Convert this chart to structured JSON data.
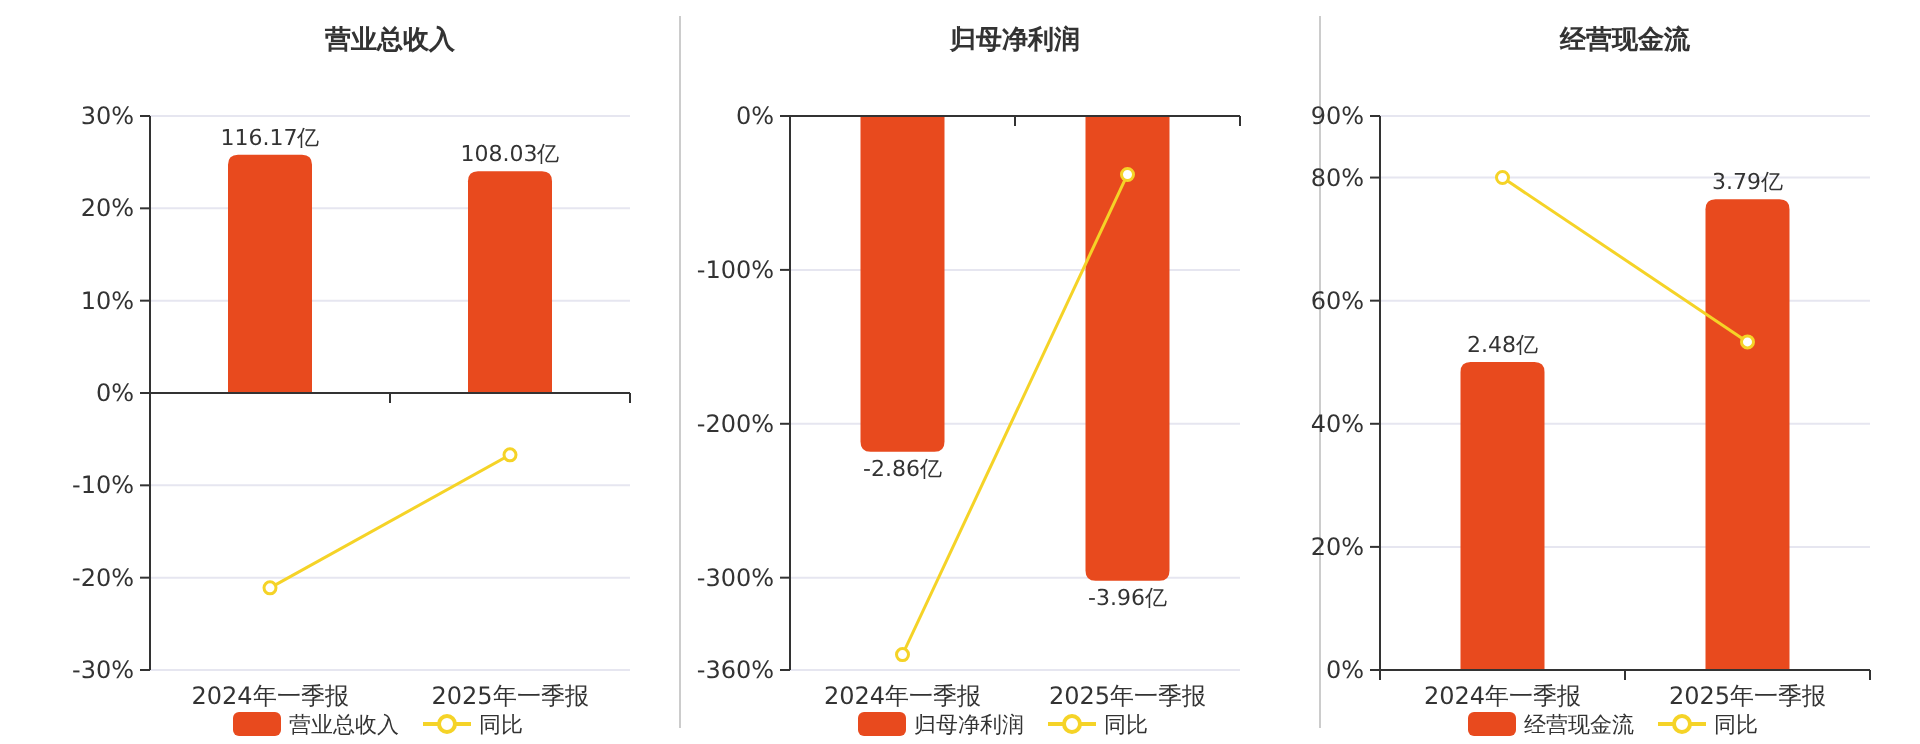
{
  "chart_data": [
    {
      "type": "bar",
      "title": "营业总收入",
      "categories": [
        "2024年一季报",
        "2025年一季报"
      ],
      "series": [
        {
          "name": "营业总收入",
          "axis": "y2",
          "color": "#e84a1e",
          "values": [
            116.17,
            108.03
          ],
          "value_labels": [
            "116.17亿",
            "108.03亿"
          ]
        },
        {
          "name": "同比",
          "type": "line",
          "color": "#f5d327",
          "marker": "circle",
          "values": [
            -21.1,
            -6.7
          ]
        }
      ],
      "ylim": [
        -30,
        30
      ],
      "yticks": [
        {
          "value": 30,
          "label": "30%"
        },
        {
          "value": 20,
          "label": "20%"
        },
        {
          "value": 10,
          "label": "10%"
        },
        {
          "value": 0,
          "label": "0%"
        },
        {
          "value": -10,
          "label": "-10%"
        },
        {
          "value": -20,
          "label": "-20%"
        },
        {
          "value": -30,
          "label": "-30%"
        }
      ],
      "y2lim": [
        -135,
        135
      ],
      "grid": "y",
      "legend": "bottom"
    },
    {
      "type": "bar",
      "title": "归母净利润",
      "categories": [
        "2024年一季报",
        "2025年一季报"
      ],
      "series": [
        {
          "name": "归母净利润",
          "axis": "y2",
          "color": "#e84a1e",
          "values": [
            -2.86,
            -3.96
          ],
          "value_labels": [
            "-2.86亿",
            "-3.96亿"
          ]
        },
        {
          "name": "同比",
          "type": "line",
          "color": "#f5d327",
          "marker": "circle",
          "values": [
            -350,
            -38
          ]
        }
      ],
      "ylim": [
        -360,
        0
      ],
      "yticks": [
        {
          "value": 0,
          "label": "0%"
        },
        {
          "value": -100,
          "label": "-100%"
        },
        {
          "value": -200,
          "label": "-200%"
        },
        {
          "value": -300,
          "label": "-300%"
        },
        {
          "value": -360,
          "label": "-360%"
        }
      ],
      "y2lim": [
        -4.72,
        0
      ],
      "grid": "y",
      "legend": "bottom"
    },
    {
      "type": "bar",
      "title": "经营现金流",
      "categories": [
        "2024年一季报",
        "2025年一季报"
      ],
      "series": [
        {
          "name": "经营现金流",
          "axis": "y2",
          "color": "#e84a1e",
          "values": [
            2.48,
            3.79
          ],
          "value_labels": [
            "2.48亿",
            "3.79亿"
          ]
        },
        {
          "name": "同比",
          "type": "line",
          "color": "#f5d327",
          "marker": "circle",
          "values": [
            80,
            53.3
          ]
        }
      ],
      "ylim": [
        0,
        90
      ],
      "yticks": [
        {
          "value": 90,
          "label": "90%"
        },
        {
          "value": 80,
          "label": "80%"
        },
        {
          "value": 60,
          "label": "60%"
        },
        {
          "value": 40,
          "label": "40%"
        },
        {
          "value": 20,
          "label": "20%"
        },
        {
          "value": 0,
          "label": "0%"
        }
      ],
      "y2lim": [
        0,
        4.46
      ],
      "grid": "y",
      "legend": "bottom"
    }
  ]
}
